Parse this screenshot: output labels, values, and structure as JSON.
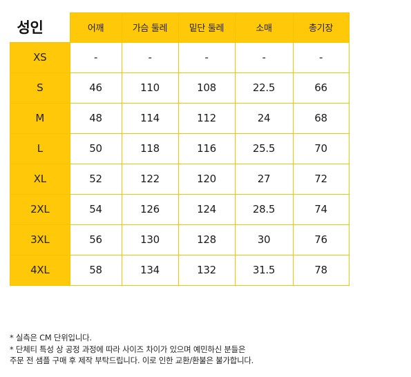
{
  "table": {
    "title": "성인",
    "headers": [
      "어깨",
      "가슴 둘레",
      "밑단 둘레",
      "소매",
      "총기장"
    ],
    "rows": [
      {
        "size": "XS",
        "values": [
          "-",
          "-",
          "-",
          "-",
          "-"
        ]
      },
      {
        "size": "S",
        "values": [
          "46",
          "110",
          "108",
          "22.5",
          "66"
        ]
      },
      {
        "size": "M",
        "values": [
          "48",
          "114",
          "112",
          "24",
          "68"
        ]
      },
      {
        "size": "L",
        "values": [
          "50",
          "118",
          "116",
          "25.5",
          "70"
        ]
      },
      {
        "size": "XL",
        "values": [
          "52",
          "122",
          "120",
          "27",
          "72"
        ]
      },
      {
        "size": "2XL",
        "values": [
          "54",
          "126",
          "124",
          "28.5",
          "74"
        ]
      },
      {
        "size": "3XL",
        "values": [
          "56",
          "130",
          "128",
          "30",
          "76"
        ]
      },
      {
        "size": "4XL",
        "values": [
          "58",
          "134",
          "132",
          "31.5",
          "78"
        ]
      }
    ]
  },
  "notes": [
    "* 실측은 CM 단위입니다.",
    "* 단체티 특성 상 공정 과정에 따라 사이즈 차이가 있으며 예민하신 분들은",
    "주문 전 샘플 구매 후 제작 부탁드립니다. 이로 인한 교환/환불은 불가합니다."
  ],
  "colors": {
    "accent": "#ffc808",
    "border": "#f5c400"
  }
}
